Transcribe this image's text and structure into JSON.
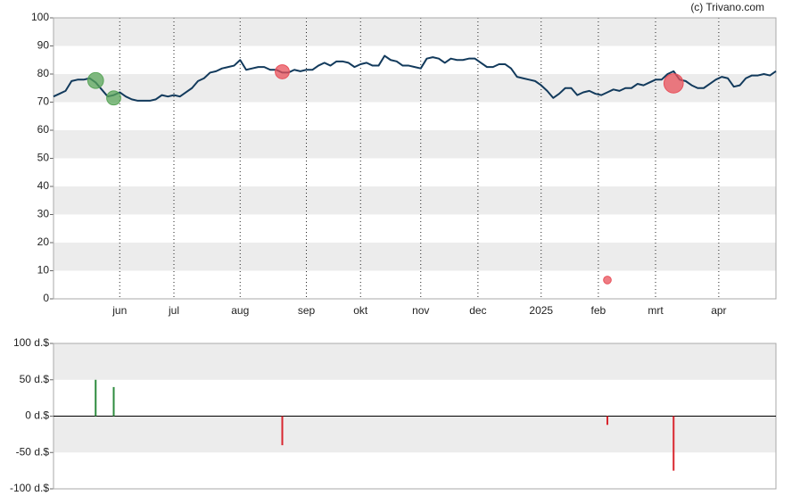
{
  "chart_data": [
    {
      "type": "line",
      "annotation": "(c) Trivano.com",
      "x": [
        0,
        1,
        2,
        3,
        4,
        5,
        6,
        7,
        8,
        9,
        10,
        11,
        12,
        13,
        14,
        15,
        16,
        17,
        18,
        19,
        20,
        21,
        22,
        23,
        24,
        25,
        26,
        27,
        28,
        29,
        30,
        31,
        32,
        33,
        34,
        35,
        36,
        37,
        38,
        39,
        40,
        41,
        42,
        43,
        44,
        45,
        46,
        47,
        48,
        49,
        50,
        51,
        52,
        53,
        54,
        55,
        56,
        57,
        58,
        59,
        60,
        61,
        62,
        63,
        64,
        65,
        66,
        67,
        68,
        69,
        70,
        71,
        72,
        73,
        74,
        75,
        76,
        77,
        78,
        79,
        80,
        81,
        82,
        83,
        84,
        85,
        86,
        87,
        88,
        89,
        90,
        91,
        92,
        93,
        94,
        95,
        96,
        97,
        98,
        99,
        100,
        101,
        102,
        103,
        104,
        105,
        106,
        107,
        108,
        109,
        110,
        111,
        112,
        113,
        114,
        115,
        116,
        117,
        118,
        119,
        120
      ],
      "series": [
        {
          "color": "#123a5c",
          "values": [
            72,
            73,
            74,
            77.5,
            78,
            78,
            78.5,
            77,
            74.5,
            72,
            72.5,
            73.5,
            72,
            71,
            70.5,
            70.5,
            70.5,
            71,
            72.5,
            72,
            72.5,
            72,
            73.5,
            75,
            77.5,
            78.5,
            80.5,
            81,
            82,
            82.5,
            83,
            85,
            81.5,
            82,
            82.5,
            82.5,
            81.5,
            81.5,
            80.5,
            80.5,
            81.5,
            81,
            81.5,
            81.5,
            83,
            84,
            83,
            84.5,
            84.5,
            84,
            82.5,
            83.5,
            84,
            83,
            83,
            86.5,
            85,
            84.5,
            83,
            83,
            82.5,
            82,
            85.5,
            86,
            85.5,
            84,
            85.5,
            85,
            85,
            85.5,
            85.5,
            84,
            82.5,
            82.5,
            83.5,
            83.5,
            82,
            79,
            78.5,
            78,
            77.5,
            76,
            74,
            71.5,
            73,
            75,
            75,
            72.5,
            73.5,
            74,
            73,
            72.5,
            73.5,
            74.5,
            74,
            75,
            75,
            76.5,
            76,
            77,
            78,
            78,
            80,
            81,
            78,
            77.5,
            76,
            75,
            75,
            76.5,
            78,
            79,
            78.5,
            75.5,
            76,
            78.5,
            79.5,
            79.5,
            80,
            79.5,
            81
          ]
        }
      ],
      "markers": {
        "x": [
          7,
          10,
          38,
          92,
          103
        ],
        "y": [
          77.7,
          71.5,
          80.8,
          6.7,
          76.7
        ],
        "sizes": [
          50,
          40,
          40,
          12,
          75
        ],
        "colors": [
          "#5aa55a",
          "#5aa55a",
          "#e8505a",
          "#e8505a",
          "#e8505a"
        ]
      },
      "xlim": [
        0,
        120
      ],
      "xticks": [
        {
          "value": 11,
          "label": "jun"
        },
        {
          "value": 20,
          "label": "jul"
        },
        {
          "value": 31,
          "label": "aug"
        },
        {
          "value": 42,
          "label": "sep"
        },
        {
          "value": 51,
          "label": "okt"
        },
        {
          "value": 61,
          "label": "nov"
        },
        {
          "value": 70.5,
          "label": "dec"
        },
        {
          "value": 81,
          "label": "2025"
        },
        {
          "value": 90.5,
          "label": "feb"
        },
        {
          "value": 100,
          "label": "mrt"
        },
        {
          "value": 110.5,
          "label": "apr"
        }
      ],
      "ylim": [
        0,
        100
      ],
      "yticks": [
        0,
        10,
        20,
        30,
        40,
        50,
        60,
        70,
        80,
        90,
        100
      ],
      "bands": true,
      "vgrid": true
    },
    {
      "type": "bar",
      "x": [
        7,
        10,
        38,
        92,
        103
      ],
      "values": [
        50,
        40,
        -40,
        -12,
        -75
      ],
      "colors": [
        "#2e8b3e",
        "#2e8b3e",
        "#d9262e",
        "#d9262e",
        "#d9262e"
      ],
      "xlim": [
        0,
        120
      ],
      "ylim": [
        -100,
        100
      ],
      "yticks": [
        {
          "value": -100,
          "label": "-100 d.$"
        },
        {
          "value": -50,
          "label": "-50 d.$"
        },
        {
          "value": 0,
          "label": "0 d.$"
        },
        {
          "value": 50,
          "label": "50 d.$"
        },
        {
          "value": 100,
          "label": "100 d.$"
        }
      ],
      "bands": true
    }
  ]
}
